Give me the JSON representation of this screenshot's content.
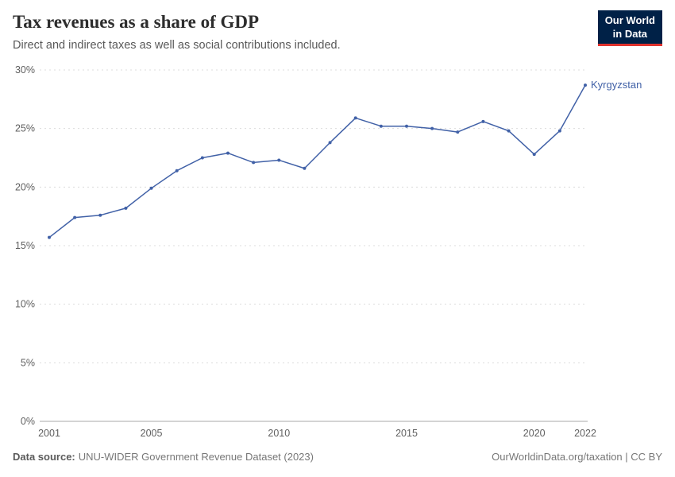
{
  "header": {
    "title": "Tax revenues as a share of GDP",
    "subtitle": "Direct and indirect taxes as well as social contributions included.",
    "logo": {
      "line1": "Our World",
      "line2": "in Data"
    }
  },
  "chart_data": {
    "type": "line",
    "title": "Tax revenues as a share of GDP",
    "subtitle": "Direct and indirect taxes as well as social contributions included.",
    "xlabel": "",
    "ylabel": "",
    "xlim": [
      2001,
      2022
    ],
    "ylim": [
      0,
      30
    ],
    "x_ticks": [
      2001,
      2005,
      2010,
      2015,
      2020,
      2022
    ],
    "y_ticks": [
      0,
      5,
      10,
      15,
      20,
      25,
      30
    ],
    "y_tick_suffix": "%",
    "grid": true,
    "legend_position": "end-of-line",
    "series": [
      {
        "name": "Kyrgyzstan",
        "color": "#4161a7",
        "x": [
          2001,
          2002,
          2003,
          2004,
          2005,
          2006,
          2007,
          2008,
          2009,
          2010,
          2011,
          2012,
          2013,
          2014,
          2015,
          2016,
          2017,
          2018,
          2019,
          2020,
          2021,
          2022
        ],
        "values": [
          15.7,
          17.4,
          17.6,
          18.2,
          19.9,
          21.4,
          22.5,
          22.9,
          22.1,
          22.3,
          21.6,
          23.8,
          25.9,
          25.2,
          25.2,
          25.0,
          24.7,
          25.6,
          24.8,
          22.8,
          24.8,
          28.7
        ]
      }
    ]
  },
  "footer": {
    "source_label": "Data source:",
    "source_text": "UNU-WIDER Government Revenue Dataset (2023)",
    "link_text": "OurWorldinData.org/taxation | CC BY"
  }
}
